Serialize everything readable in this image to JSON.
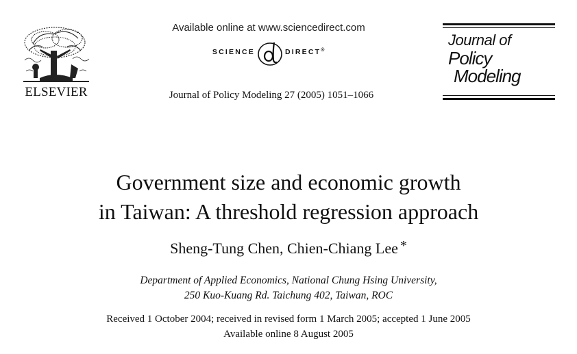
{
  "header": {
    "publisher_name": "ELSEVIER",
    "available_online_text": "Available online at www.sciencedirect.com",
    "sciencedirect_left": "SCIENCE",
    "sciencedirect_right": "DIRECT",
    "sciencedirect_mark": "®",
    "journal_reference": "Journal of Policy Modeling 27 (2005) 1051–1066",
    "journal_logo": {
      "line1": "Journal of",
      "line2": "Policy",
      "line3": "Modeling"
    }
  },
  "article": {
    "title_line1": "Government size and economic growth",
    "title_line2": "in Taiwan: A threshold regression approach",
    "authors": "Sheng-Tung Chen, Chien-Chiang Lee",
    "author_mark": "*",
    "affiliation_line1": "Department of Applied Economics, National Chung Hsing University,",
    "affiliation_line2": "250 Kuo-Kuang Rd. Taichung 402, Taiwan, ROC",
    "dates_line1": "Received 1 October 2004; received in revised form 1 March 2005; accepted 1 June 2005",
    "dates_line2": "Available online 8 August 2005"
  }
}
